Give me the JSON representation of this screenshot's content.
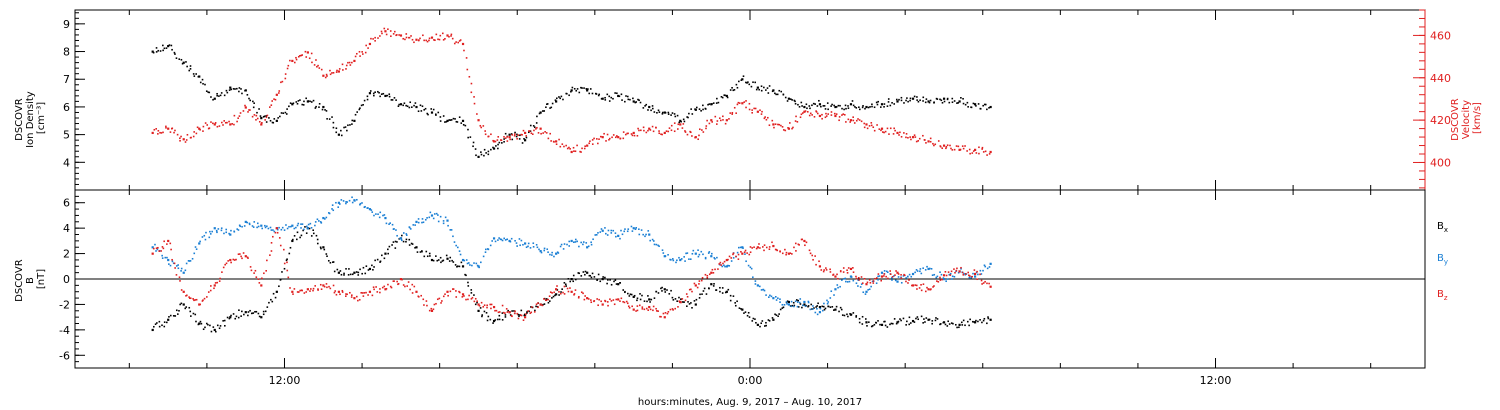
{
  "chart_data": [
    {
      "type": "scatter",
      "panel": "plasma",
      "y_left": {
        "label_lines": [
          "DSCOVR",
          "Ion Density",
          "[cm⁻³]"
        ],
        "ylim": [
          3,
          9.5
        ],
        "ticks": [
          4,
          5,
          6,
          7,
          8,
          9
        ],
        "minor_step": 0.2,
        "color": "#000000"
      },
      "y_right": {
        "label_lines": [
          "DSCOVR",
          "Velocity",
          "[km/s]"
        ],
        "ylim": [
          387,
          472
        ],
        "ticks": [
          400,
          420,
          440,
          460
        ],
        "minor_step": 4,
        "color": "#e02020"
      },
      "series": [
        {
          "key": "density",
          "axis": "left",
          "color": "#000000",
          "x": [
            -15.4,
            -15.0,
            -14.6,
            -14.2,
            -13.8,
            -13.4,
            -13.0,
            -12.6,
            -12.2,
            -11.8,
            -11.4,
            -11.0,
            -10.6,
            -10.2,
            -9.8,
            -9.4,
            -9.0,
            -8.6,
            -8.2,
            -7.8,
            -7.4,
            -7.0,
            -6.6,
            -6.2,
            -5.8,
            -5.4,
            -5.0,
            -4.6,
            -4.2,
            -3.8,
            -3.4,
            -3.0,
            -2.6,
            -2.2,
            -1.8,
            -1.4,
            -1.0,
            -0.6,
            -0.2,
            0.2,
            0.6,
            1.0,
            1.4,
            1.8,
            2.2,
            2.6,
            3.0,
            3.4,
            3.8,
            4.2,
            4.6,
            5.0,
            5.4,
            5.8,
            6.2
          ],
          "y": [
            8.0,
            8.2,
            7.6,
            7.1,
            6.3,
            6.7,
            6.6,
            5.6,
            5.5,
            6.1,
            6.2,
            6.0,
            5.0,
            5.5,
            6.5,
            6.4,
            6.1,
            6.0,
            5.8,
            5.5,
            5.5,
            4.2,
            4.5,
            5.0,
            4.8,
            5.8,
            6.2,
            6.6,
            6.6,
            6.3,
            6.4,
            6.2,
            6.0,
            5.8,
            5.5,
            5.9,
            6.1,
            6.4,
            7.0,
            6.7,
            6.6,
            6.3,
            6.0,
            6.1,
            6.0,
            6.1,
            6.0,
            6.1,
            6.2,
            6.3,
            6.2,
            6.3,
            6.2,
            6.1,
            6.0
          ]
        },
        {
          "key": "velocity",
          "axis": "right",
          "color": "#e02020",
          "x": [
            -15.4,
            -15.0,
            -14.6,
            -14.2,
            -13.8,
            -13.4,
            -13.0,
            -12.6,
            -12.2,
            -11.8,
            -11.4,
            -11.0,
            -10.6,
            -10.2,
            -9.8,
            -9.4,
            -9.0,
            -8.6,
            -8.2,
            -7.8,
            -7.4,
            -7.0,
            -6.6,
            -6.2,
            -5.8,
            -5.4,
            -5.0,
            -4.6,
            -4.2,
            -3.8,
            -3.4,
            -3.0,
            -2.6,
            -2.2,
            -1.8,
            -1.4,
            -1.0,
            -0.6,
            -0.2,
            0.2,
            0.6,
            1.0,
            1.4,
            1.8,
            2.2,
            2.6,
            3.0,
            3.4,
            3.8,
            4.2,
            4.6,
            5.0,
            5.4,
            5.8,
            6.2
          ],
          "y": [
            414,
            416,
            411,
            416,
            418,
            418,
            426,
            418,
            432,
            448,
            452,
            441,
            443,
            448,
            456,
            462,
            460,
            458,
            459,
            460,
            456,
            420,
            410,
            412,
            414,
            416,
            410,
            405,
            408,
            412,
            412,
            414,
            416,
            414,
            418,
            412,
            420,
            420,
            428,
            424,
            418,
            416,
            424,
            422,
            422,
            420,
            418,
            416,
            414,
            412,
            410,
            408,
            406,
            406,
            405
          ]
        }
      ]
    },
    {
      "type": "scatter",
      "panel": "magnetic-field",
      "y_left": {
        "label_lines": [
          "DSCOVR",
          "B",
          "[nT]"
        ],
        "ylim": [
          -7,
          7
        ],
        "ticks": [
          -6,
          -4,
          -2,
          0,
          2,
          4,
          6
        ],
        "minor_step": 0.5,
        "color": "#000000"
      },
      "zero_line": true,
      "series": [
        {
          "key": "bx",
          "name": "Bx",
          "label_base": "B",
          "label_sub": "x",
          "color": "#000000",
          "x": [
            -15.4,
            -15.0,
            -14.6,
            -14.2,
            -13.8,
            -13.4,
            -13.0,
            -12.6,
            -12.2,
            -11.8,
            -11.4,
            -11.0,
            -10.6,
            -10.2,
            -9.8,
            -9.4,
            -9.0,
            -8.6,
            -8.2,
            -7.8,
            -7.4,
            -7.0,
            -6.6,
            -6.2,
            -5.8,
            -5.4,
            -5.0,
            -4.6,
            -4.2,
            -3.8,
            -3.4,
            -3.0,
            -2.6,
            -2.2,
            -1.8,
            -1.4,
            -1.0,
            -0.6,
            -0.2,
            0.2,
            0.6,
            1.0,
            1.4,
            1.8,
            2.2,
            2.6,
            3.0,
            3.4,
            3.8,
            4.2,
            4.6,
            5.0,
            5.4,
            5.8,
            6.2
          ],
          "y": [
            -4.0,
            -3.2,
            -2.0,
            -3.5,
            -4.0,
            -3.0,
            -2.6,
            -3.0,
            -1.0,
            3.0,
            4.0,
            2.5,
            0.5,
            0.5,
            0.8,
            2.0,
            3.2,
            2.5,
            1.5,
            1.6,
            1.0,
            -2.5,
            -3.3,
            -2.6,
            -2.8,
            -2.0,
            -1.2,
            0.0,
            0.5,
            0.0,
            -0.4,
            -1.4,
            -1.6,
            -0.8,
            -1.8,
            -2.0,
            -0.4,
            -1.0,
            -2.4,
            -3.6,
            -3.2,
            -1.8,
            -2.0,
            -2.2,
            -2.4,
            -2.8,
            -3.4,
            -3.6,
            -3.4,
            -3.3,
            -3.2,
            -3.4,
            -3.6,
            -3.4,
            -3.2
          ]
        },
        {
          "key": "by",
          "name": "By",
          "label_base": "B",
          "label_sub": "y",
          "color": "#1a7fd4",
          "x": [
            -15.4,
            -15.0,
            -14.6,
            -14.2,
            -13.8,
            -13.4,
            -13.0,
            -12.6,
            -12.2,
            -11.8,
            -11.4,
            -11.0,
            -10.6,
            -10.2,
            -9.8,
            -9.4,
            -9.0,
            -8.6,
            -8.2,
            -7.8,
            -7.4,
            -7.0,
            -6.6,
            -6.2,
            -5.8,
            -5.4,
            -5.0,
            -4.6,
            -4.2,
            -3.8,
            -3.4,
            -3.0,
            -2.6,
            -2.2,
            -1.8,
            -1.4,
            -1.0,
            -0.6,
            -0.2,
            0.2,
            0.6,
            1.0,
            1.4,
            1.8,
            2.2,
            2.6,
            3.0,
            3.4,
            3.8,
            4.2,
            4.6,
            5.0,
            5.4,
            5.8,
            6.2
          ],
          "y": [
            2.5,
            1.5,
            0.5,
            2.8,
            4.0,
            3.5,
            4.5,
            4.2,
            4.0,
            4.2,
            4.0,
            4.8,
            6.0,
            6.2,
            5.5,
            4.8,
            3.2,
            4.5,
            5.0,
            4.6,
            1.5,
            1.0,
            3.2,
            3.0,
            2.8,
            2.2,
            2.0,
            3.0,
            2.5,
            3.8,
            3.4,
            4.0,
            3.5,
            1.8,
            1.5,
            2.0,
            1.8,
            1.0,
            2.5,
            -0.5,
            -1.5,
            -2.0,
            -1.8,
            -2.6,
            -0.8,
            0.2,
            -1.0,
            0.5,
            -0.2,
            0.4,
            0.8,
            0.0,
            0.6,
            0.2,
            1.2
          ]
        },
        {
          "key": "bz",
          "name": "Bz",
          "label_base": "B",
          "label_sub": "z",
          "color": "#e02020",
          "x": [
            -15.4,
            -15.0,
            -14.6,
            -14.2,
            -13.8,
            -13.4,
            -13.0,
            -12.6,
            -12.2,
            -11.8,
            -11.4,
            -11.0,
            -10.6,
            -10.2,
            -9.8,
            -9.4,
            -9.0,
            -8.6,
            -8.2,
            -7.8,
            -7.4,
            -7.0,
            -6.6,
            -6.2,
            -5.8,
            -5.4,
            -5.0,
            -4.6,
            -4.2,
            -3.8,
            -3.4,
            -3.0,
            -2.6,
            -2.2,
            -1.8,
            -1.4,
            -1.0,
            -0.6,
            -0.2,
            0.2,
            0.6,
            1.0,
            1.4,
            1.8,
            2.2,
            2.6,
            3.0,
            3.4,
            3.8,
            4.2,
            4.6,
            5.0,
            5.4,
            5.8,
            6.2
          ],
          "y": [
            2.0,
            3.0,
            -1.0,
            -2.0,
            -0.5,
            1.5,
            1.8,
            -0.5,
            4.0,
            -1.0,
            -0.8,
            -0.5,
            -1.0,
            -1.5,
            -1.0,
            -0.8,
            0.0,
            -1.0,
            -2.5,
            -1.0,
            -1.2,
            -2.0,
            -2.2,
            -2.6,
            -3.0,
            -2.0,
            -0.8,
            -1.0,
            -1.5,
            -2.0,
            -1.6,
            -2.4,
            -2.2,
            -3.0,
            -1.8,
            -0.5,
            0.5,
            1.5,
            2.0,
            2.5,
            2.6,
            2.0,
            3.0,
            1.0,
            0.2,
            0.8,
            -0.4,
            0.2,
            0.5,
            -0.5,
            -0.8,
            0.3,
            0.6,
            0.4,
            -0.6
          ]
        }
      ]
    }
  ],
  "x_axis": {
    "label": "hours:minutes, Aug.  9, 2017 – Aug. 10, 2017",
    "range": [
      -17.4,
      17.4
    ],
    "major_ticks": [
      -12,
      0,
      12
    ],
    "major_labels": [
      "12:00",
      "0:00",
      "12:00"
    ],
    "minor_step": 2
  }
}
